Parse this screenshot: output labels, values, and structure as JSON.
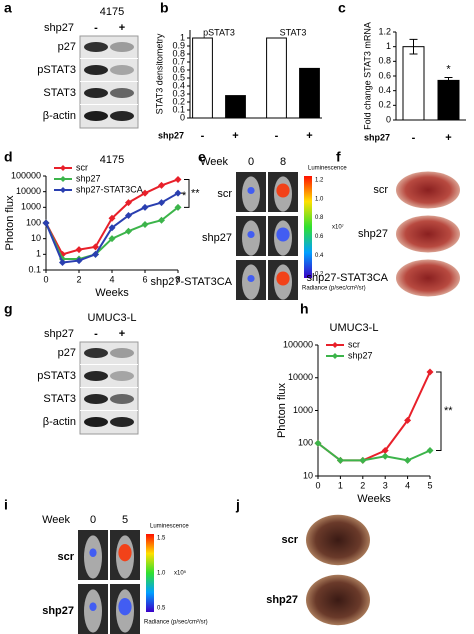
{
  "panel_labels": [
    "a",
    "b",
    "c",
    "d",
    "e",
    "f",
    "g",
    "h",
    "i",
    "j"
  ],
  "blots": [
    {
      "title": "4175",
      "treatment": "shp27",
      "signs": [
        "-",
        "+"
      ],
      "rows": [
        "p27",
        "pSTAT3",
        "STAT3",
        "β-actin"
      ]
    },
    {
      "title": "UMUC3-L",
      "treatment": "shp27",
      "signs": [
        "-",
        "+"
      ],
      "rows": [
        "p27",
        "pSTAT3",
        "STAT3",
        "β-actin"
      ]
    }
  ],
  "images": [
    {
      "week_label": "Week",
      "weeks": [
        "0",
        "8"
      ],
      "rows": [
        "scr",
        "shp27",
        "shp27-STAT3CA"
      ],
      "colorbar_title": "Luminescence",
      "colorbar_ticks": [
        "1.2",
        "1.0",
        "0.8",
        "0.6",
        "0.4",
        "0.2"
      ],
      "colorbar_scale": "x10⁷",
      "colorbar_unit": "Radiance (p/sec/cm²/sr)"
    },
    {
      "rows": [
        "scr",
        "shp27",
        "shp27-STAT3CA"
      ]
    },
    {
      "week_label": "Week",
      "weeks": [
        "0",
        "5"
      ],
      "rows": [
        "scr",
        "shp27"
      ],
      "colorbar_title": "Luminescence",
      "colorbar_ticks": [
        "1.5",
        "1.0",
        "0.5"
      ],
      "colorbar_scale": "x10⁵",
      "colorbar_unit": "Radiance (p/sec/cm²/sr)"
    },
    {
      "rows": [
        "scr",
        "shp27"
      ]
    }
  ],
  "chart_data": [
    {
      "type": "bar",
      "y_label": "STAT3 densitometry",
      "x_label": "shp27",
      "groups": [
        "pSTAT3",
        "STAT3"
      ],
      "categories": [
        "-",
        "+",
        "-",
        "+"
      ],
      "values": [
        1,
        0.28,
        1,
        0.62
      ],
      "colors": [
        "#ffffff",
        "#000000",
        "#ffffff",
        "#000000"
      ],
      "ylim": [
        0,
        1.1
      ],
      "yticks": [
        0,
        0.1,
        0.2,
        0.3,
        0.4,
        0.5,
        0.6,
        0.7,
        0.8,
        0.9,
        1
      ]
    },
    {
      "type": "bar",
      "y_label": "Fold change STAT3 mRNA",
      "x_label": "shp27",
      "categories": [
        "-",
        "+"
      ],
      "values": [
        1,
        0.54
      ],
      "errors": [
        0.1,
        0.04
      ],
      "colors": [
        "#ffffff",
        "#000000"
      ],
      "annotations": [
        "*"
      ],
      "ylim": [
        0,
        1.2
      ],
      "yticks": [
        0,
        0.2,
        0.4,
        0.6,
        0.8,
        1,
        1.2
      ]
    },
    {
      "type": "line",
      "title": "4175",
      "y_label": "Photon flux",
      "x_label": "Weeks",
      "log_y": true,
      "x": [
        0,
        1,
        2,
        3,
        4,
        5,
        6,
        7,
        8
      ],
      "series": [
        {
          "name": "scr",
          "color": "#e8202a",
          "values": [
            100,
            1,
            2,
            3,
            200,
            2000,
            8000,
            25000,
            60000
          ]
        },
        {
          "name": "shp27",
          "color": "#3cb44a",
          "values": [
            100,
            0.5,
            0.5,
            1,
            10,
            30,
            80,
            150,
            1000
          ]
        },
        {
          "name": "shp27-STAT3CA",
          "color": "#2a3fb0",
          "values": [
            100,
            0.3,
            0.4,
            1,
            50,
            300,
            1000,
            2000,
            8000
          ]
        }
      ],
      "annotations": [
        "*",
        "**"
      ],
      "xlim": [
        0,
        8
      ],
      "xticks": [
        0,
        2,
        4,
        6,
        8
      ],
      "ylim": [
        0.1,
        100000
      ],
      "yticks": [
        0.1,
        1,
        10,
        100,
        1000,
        10000,
        100000
      ]
    },
    {
      "type": "line",
      "title": "UMUC3-L",
      "y_label": "Photon flux",
      "x_label": "Weeks",
      "log_y": true,
      "x": [
        0,
        1,
        2,
        3,
        4,
        5
      ],
      "series": [
        {
          "name": "scr",
          "color": "#e8202a",
          "values": [
            100,
            30,
            30,
            60,
            500,
            15000
          ]
        },
        {
          "name": "shp27",
          "color": "#3cb44a",
          "values": [
            100,
            30,
            30,
            40,
            30,
            60
          ]
        }
      ],
      "annotations": [
        "**"
      ],
      "xlim": [
        0,
        5
      ],
      "xticks": [
        0,
        1,
        2,
        3,
        4,
        5
      ],
      "ylim": [
        10,
        100000
      ],
      "yticks": [
        10,
        100,
        1000,
        10000,
        100000
      ]
    }
  ]
}
